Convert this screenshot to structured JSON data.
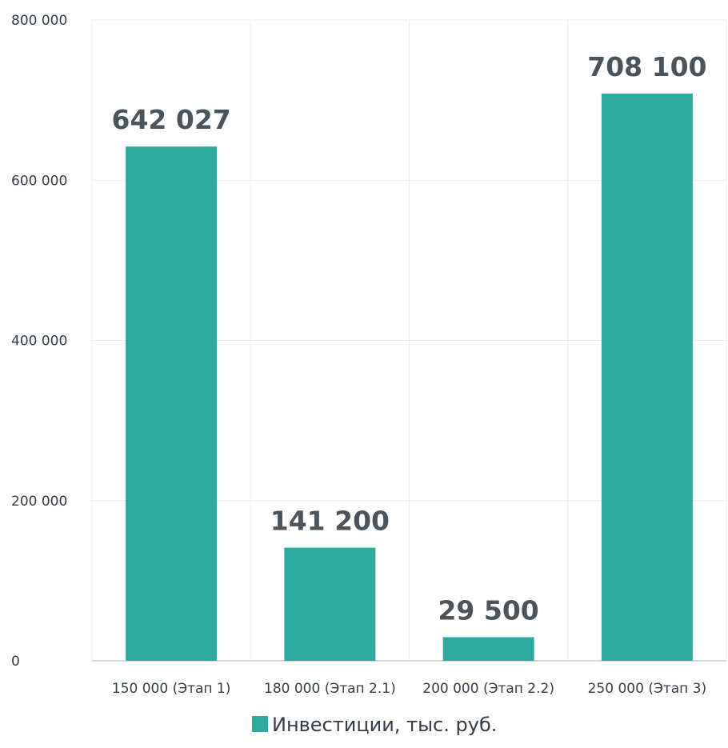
{
  "chart_data": {
    "type": "bar",
    "categories": [
      "150 000 (Этап 1)",
      "180 000 (Этап 2.1)",
      "200 000 (Этап 2.2)",
      "250 000 (Этап 3)"
    ],
    "series": [
      {
        "name": "Инвестиции, тыс. руб.",
        "values": [
          642027,
          141200,
          29500,
          708100
        ],
        "value_labels": [
          "642 027",
          "141 200",
          "29 500",
          "708 100"
        ]
      }
    ],
    "ylim": [
      0,
      800000
    ],
    "yticks": [
      0,
      200000,
      400000,
      600000,
      800000
    ],
    "ytick_labels": [
      "0",
      "200 000",
      "400 000",
      "600 000",
      "800 000"
    ],
    "grid": true,
    "legend_position": "bottom",
    "bar_color": "#2ea99d",
    "title": "",
    "xlabel": "",
    "ylabel": ""
  }
}
